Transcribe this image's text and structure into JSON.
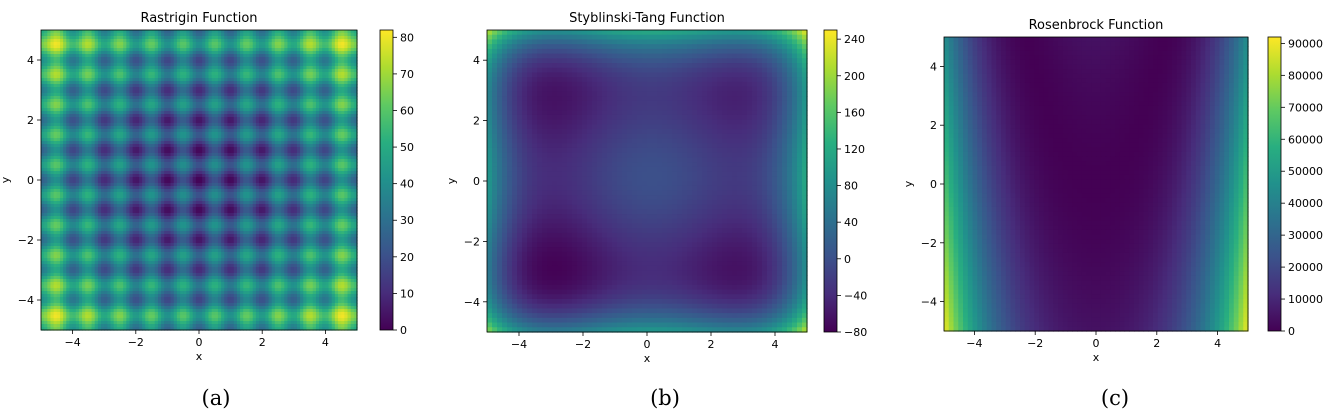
{
  "chart_data": [
    {
      "type": "heatmap",
      "title": "Rastrigin Function",
      "xlabel": "x",
      "ylabel": "y",
      "xlim": [
        -5,
        5
      ],
      "ylim": [
        -5,
        5
      ],
      "x_ticks": [
        -4,
        -2,
        0,
        2,
        4
      ],
      "y_ticks": [
        -4,
        -2,
        0,
        2,
        4
      ],
      "colorbar": {
        "min": 0,
        "max": 82,
        "ticks": [
          0,
          10,
          20,
          30,
          40,
          50,
          60,
          70,
          80
        ]
      },
      "colormap": "viridis",
      "caption": "(a)"
    },
    {
      "type": "heatmap",
      "title": "Styblinski-Tang Function",
      "xlabel": "x",
      "ylabel": "y",
      "xlim": [
        -5,
        5
      ],
      "ylim": [
        -5,
        5
      ],
      "x_ticks": [
        -4,
        -2,
        0,
        2,
        4
      ],
      "y_ticks": [
        -4,
        -2,
        0,
        2,
        4
      ],
      "colorbar": {
        "min": -80,
        "max": 250,
        "ticks": [
          -80,
          -40,
          0,
          40,
          80,
          120,
          160,
          200,
          240
        ]
      },
      "colormap": "viridis",
      "caption": "(b)"
    },
    {
      "type": "heatmap",
      "title": "Rosenbrock Function",
      "xlabel": "x",
      "ylabel": "y",
      "xlim": [
        -5,
        5
      ],
      "ylim": [
        -5,
        5
      ],
      "x_ticks": [
        -4,
        -2,
        0,
        2,
        4
      ],
      "y_ticks": [
        -4,
        -2,
        0,
        2,
        4
      ],
      "colorbar": {
        "min": 0,
        "max": 92000,
        "ticks": [
          0,
          10000,
          20000,
          30000,
          40000,
          50000,
          60000,
          70000,
          80000,
          90000
        ]
      },
      "colormap": "viridis",
      "caption": "(c)"
    }
  ]
}
